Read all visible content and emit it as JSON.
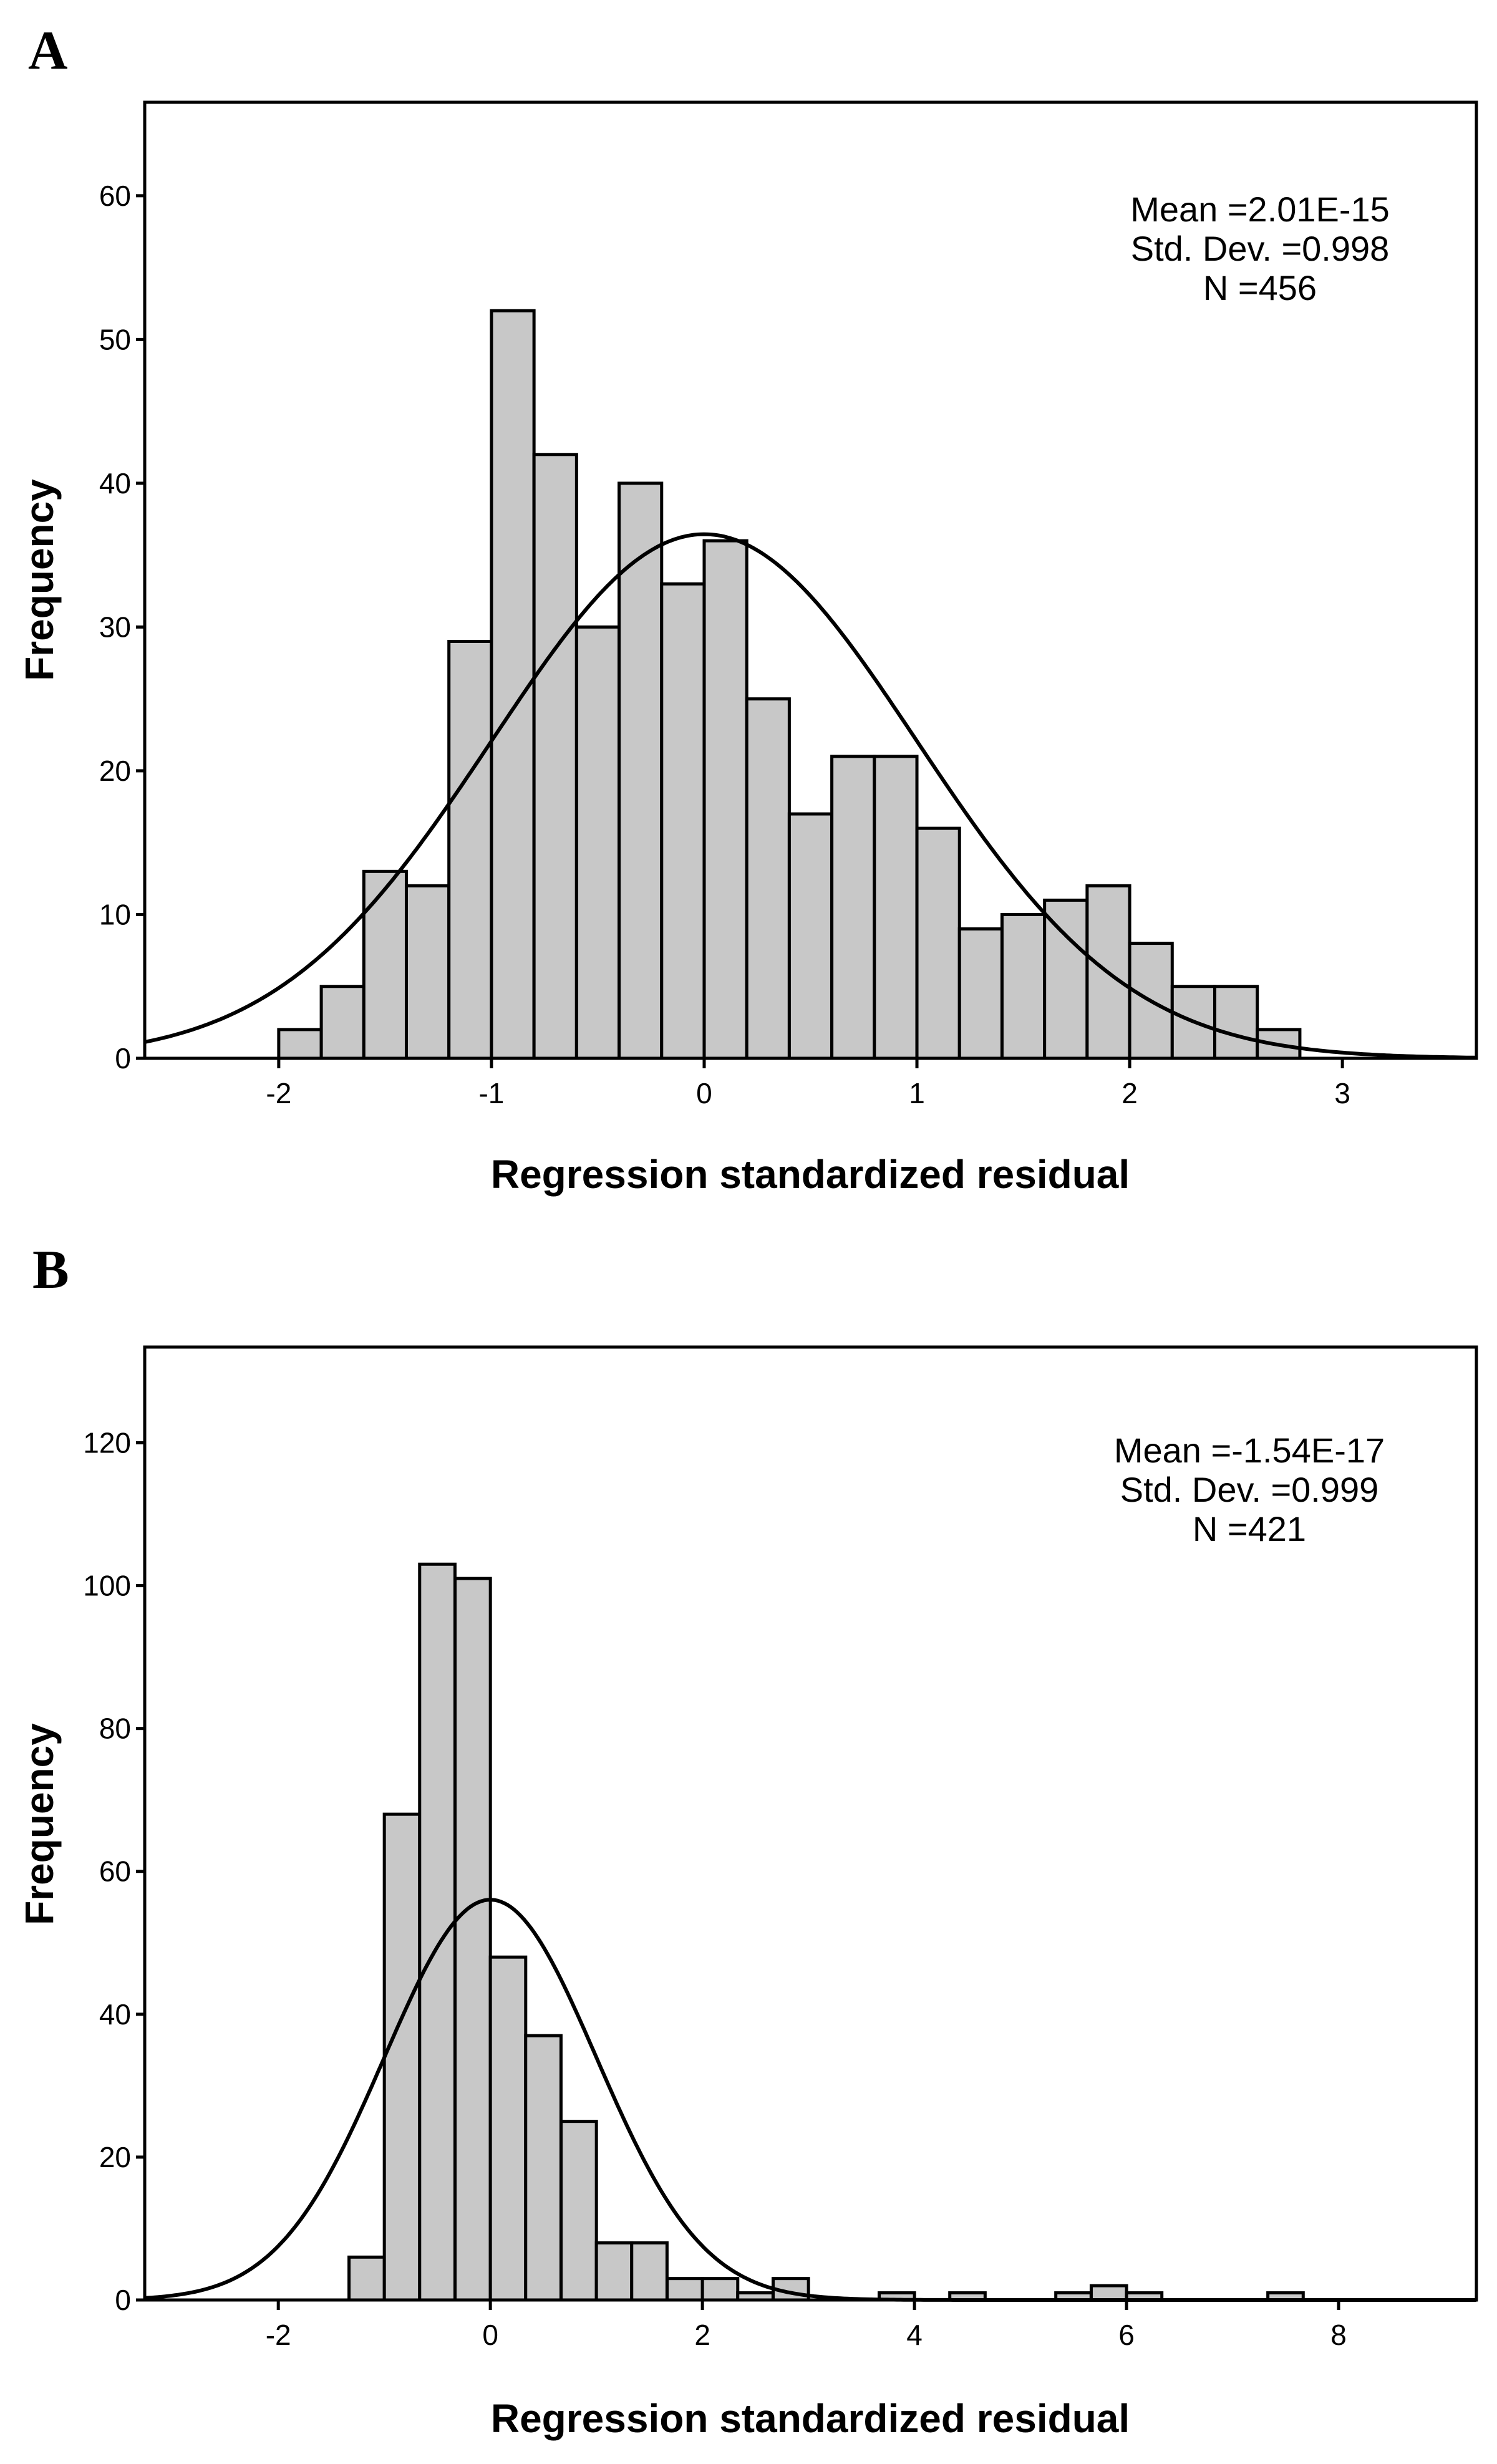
{
  "chart_data": [
    {
      "type": "bar",
      "panel_label": "A",
      "title": "",
      "xlabel": "Regression standardized residual",
      "ylabel": "Frequency",
      "xlim": [
        -2.63,
        3.63
      ],
      "ylim": [
        0,
        66.5
      ],
      "xticks": [
        "-2",
        "-1",
        "0",
        "1",
        "2",
        "3"
      ],
      "xtick_values": [
        -2,
        -1,
        0,
        1,
        2,
        3
      ],
      "yticks": [
        "0",
        "10",
        "20",
        "30",
        "40",
        "50",
        "60"
      ],
      "ytick_values": [
        0,
        10,
        20,
        30,
        40,
        50,
        60
      ],
      "bin_width": 0.2,
      "bin_starts": [
        -2.0,
        -1.8,
        -1.6,
        -1.4,
        -1.2,
        -1.0,
        -0.8,
        -0.6,
        -0.4,
        -0.2,
        0.0,
        0.2,
        0.4,
        0.6,
        0.8,
        1.0,
        1.2,
        1.4,
        1.6,
        1.8,
        2.0,
        2.2,
        2.4,
        2.6
      ],
      "values": [
        2,
        5,
        13,
        12,
        29,
        52,
        42,
        30,
        40,
        33,
        36,
        25,
        17,
        21,
        21,
        16,
        9,
        10,
        11,
        12,
        8,
        5,
        5,
        2
      ],
      "normal_curve": {
        "mean": 0,
        "sd": 0.998,
        "n": 456
      },
      "stats": [
        "Mean =2.01E-15",
        "Std. Dev. =0.998",
        "N =456"
      ],
      "colors": {
        "bar_fill": "#c8c8c8",
        "stroke": "#000000"
      }
    },
    {
      "type": "bar",
      "panel_label": "B",
      "title": "",
      "xlabel": "Regression standardized residual",
      "ylabel": "Frequency",
      "xlim": [
        -3.26,
        9.3
      ],
      "ylim": [
        0,
        133.4
      ],
      "xticks": [
        "-2",
        "0",
        "2",
        "4",
        "6",
        "8"
      ],
      "xtick_values": [
        -2,
        0,
        2,
        4,
        6,
        8
      ],
      "yticks": [
        "0",
        "20",
        "40",
        "60",
        "80",
        "100",
        "120"
      ],
      "ytick_values": [
        0,
        20,
        40,
        60,
        80,
        100,
        120
      ],
      "bin_width": 0.3333,
      "bin_starts": [
        -1.333,
        -1.0,
        -0.667,
        -0.333,
        0.0,
        0.333,
        0.667,
        1.0,
        1.333,
        1.667,
        2.0,
        2.333,
        2.667,
        3.667,
        4.333,
        5.333,
        5.667,
        6.0,
        7.333
      ],
      "values": [
        6,
        68,
        103,
        101,
        48,
        37,
        25,
        8,
        8,
        3,
        3,
        1,
        3,
        1,
        1,
        1,
        2,
        1,
        1
      ],
      "normal_curve": {
        "mean": 0,
        "sd": 0.999,
        "n": 421
      },
      "stats": [
        "Mean =-1.54E-17",
        "Std. Dev. =0.999",
        "N =421"
      ],
      "colors": {
        "bar_fill": "#c8c8c8",
        "stroke": "#000000"
      }
    }
  ]
}
